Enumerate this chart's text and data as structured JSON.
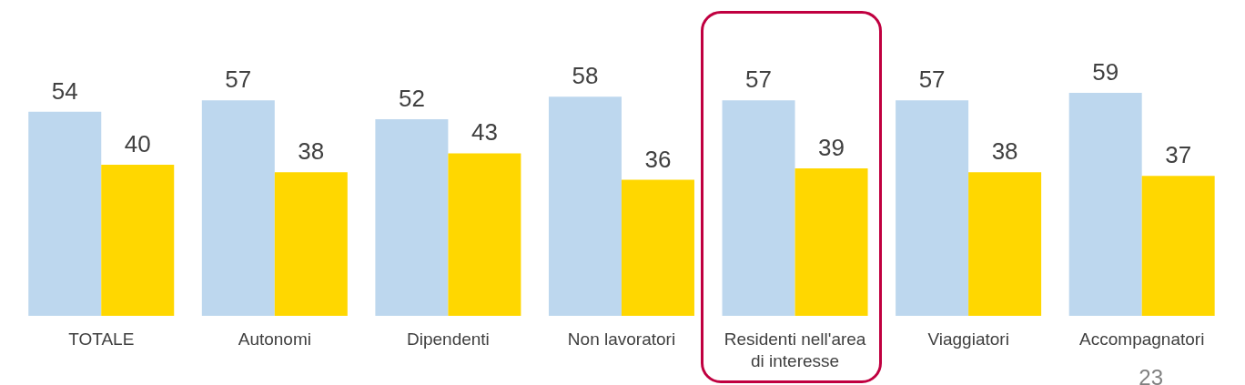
{
  "chart_data": {
    "type": "bar",
    "categories": [
      "TOTALE",
      "Autonomi",
      "Dipendenti",
      "Non lavoratori",
      "Residenti nell'area di interesse",
      "Viaggiatori",
      "Accompagnatori"
    ],
    "series": [
      {
        "color": "#bdd7ee",
        "values": [
          54,
          57,
          52,
          58,
          57,
          57,
          59
        ]
      },
      {
        "color": "#ffd700",
        "values": [
          40,
          38,
          43,
          36,
          39,
          38,
          37
        ]
      }
    ],
    "data_labels": true,
    "grid": false,
    "legend": false,
    "annotations": [
      "23"
    ]
  }
}
